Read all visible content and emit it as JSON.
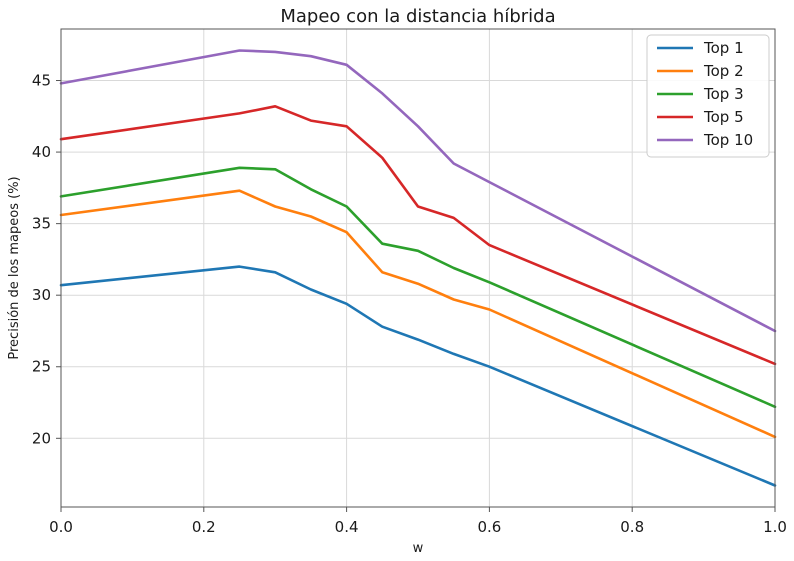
{
  "chart_data": {
    "type": "line",
    "title": "Mapeo con la distancia híbrida",
    "xlabel": "w",
    "ylabel": "Precisión de los mapeos (%)",
    "xlim": [
      0.0,
      1.0
    ],
    "ylim": [
      15.2,
      48.6
    ],
    "xticks": [
      "0.0",
      "0.2",
      "0.4",
      "0.6",
      "0.8",
      "1.0"
    ],
    "yticks": [
      "20",
      "25",
      "30",
      "35",
      "40",
      "45"
    ],
    "grid": true,
    "legend_position": "top-right",
    "x": [
      0.0,
      0.25,
      0.3,
      0.35,
      0.4,
      0.45,
      0.5,
      0.55,
      0.6,
      1.0
    ],
    "series": [
      {
        "name": "Top 1",
        "color": "#1f77b4",
        "values": [
          30.7,
          32.0,
          31.6,
          30.4,
          29.4,
          27.8,
          26.9,
          25.9,
          25.0,
          16.7
        ]
      },
      {
        "name": "Top 2",
        "color": "#ff7f0e",
        "values": [
          35.6,
          37.3,
          36.2,
          35.5,
          34.4,
          31.6,
          30.8,
          29.7,
          29.0,
          20.1
        ]
      },
      {
        "name": "Top 3",
        "color": "#2ca02c",
        "values": [
          36.9,
          38.9,
          38.8,
          37.4,
          36.2,
          33.6,
          33.1,
          31.9,
          30.9,
          22.2
        ]
      },
      {
        "name": "Top 5",
        "color": "#d62728",
        "values": [
          40.9,
          42.7,
          43.2,
          42.2,
          41.8,
          39.6,
          36.2,
          35.4,
          33.5,
          25.2
        ]
      },
      {
        "name": "Top 10",
        "color": "#9467bd",
        "values": [
          44.8,
          47.1,
          47.0,
          46.7,
          46.1,
          44.1,
          41.8,
          39.2,
          37.9,
          27.5
        ]
      }
    ]
  }
}
